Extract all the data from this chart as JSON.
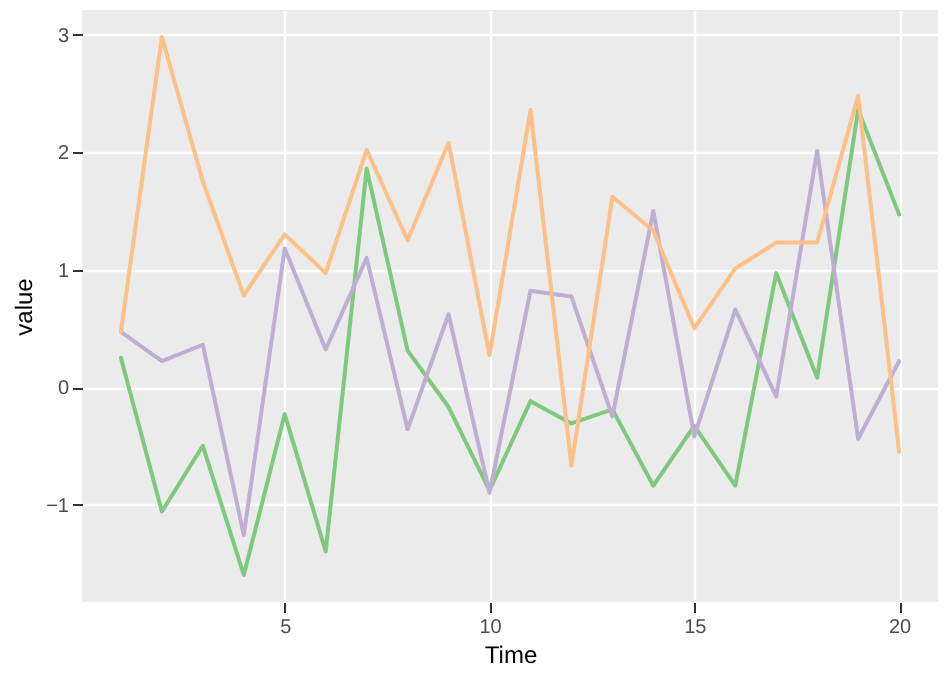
{
  "chart_data": {
    "type": "line",
    "xlabel": "Time",
    "ylabel": "value",
    "x": [
      1,
      2,
      3,
      4,
      5,
      6,
      7,
      8,
      9,
      10,
      11,
      12,
      13,
      14,
      15,
      16,
      17,
      18,
      19,
      20
    ],
    "xlim": [
      0.05,
      20.95
    ],
    "xticks": [
      5,
      10,
      15,
      20
    ],
    "ylim": [
      -1.83,
      3.21
    ],
    "yticks": [
      -1,
      0,
      1,
      2,
      3
    ],
    "grid": true,
    "series": [
      {
        "color": "#7fc97f",
        "values": [
          0.25,
          -1.06,
          -0.5,
          -1.6,
          -0.23,
          -1.4,
          1.86,
          0.31,
          -0.17,
          -0.88,
          -0.12,
          -0.31,
          -0.19,
          -0.84,
          -0.33,
          -0.84,
          0.97,
          0.08,
          2.36,
          1.47
        ]
      },
      {
        "color": "#beaed4",
        "values": [
          0.47,
          0.22,
          0.36,
          -1.26,
          1.18,
          0.32,
          1.1,
          -0.36,
          0.62,
          -0.9,
          0.82,
          0.77,
          -0.25,
          1.5,
          -0.42,
          0.66,
          -0.08,
          2.01,
          -0.44,
          0.22
        ]
      },
      {
        "color": "#fdc086",
        "values": [
          0.47,
          2.98,
          1.75,
          0.78,
          1.3,
          0.97,
          2.02,
          1.25,
          2.08,
          0.27,
          2.36,
          -0.67,
          1.62,
          1.33,
          0.5,
          1.01,
          1.23,
          1.23,
          2.48,
          -0.55
        ]
      }
    ]
  }
}
